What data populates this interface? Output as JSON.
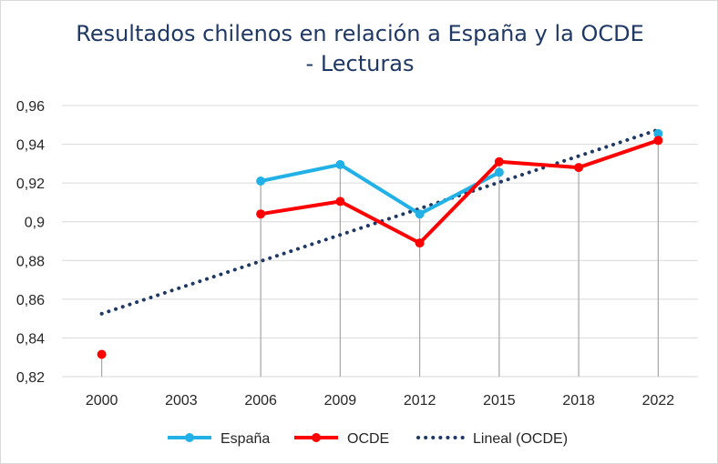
{
  "chart_data": {
    "type": "line",
    "title_lines": [
      "Resultados chilenos en relación a España y la OCDE",
      "- Lecturas"
    ],
    "categories": [
      "2000",
      "2003",
      "2006",
      "2009",
      "2012",
      "2015",
      "2018",
      "2022"
    ],
    "y_ticks": [
      "0,82",
      "0,84",
      "0,86",
      "0,88",
      "0,9",
      "0,92",
      "0,94",
      "0,96"
    ],
    "ylim": [
      0.82,
      0.96
    ],
    "grid": "horizontal",
    "legend_position": "bottom",
    "series": [
      {
        "name": "España",
        "color": "#21b1e7",
        "values": [
          null,
          null,
          0.921,
          0.9295,
          0.904,
          0.9255,
          null,
          0.9455
        ]
      },
      {
        "name": "OCDE",
        "color": "#ff0000",
        "values": [
          0.8315,
          null,
          0.904,
          0.9105,
          0.889,
          0.931,
          0.928,
          0.942
        ]
      },
      {
        "name": "Lineal (OCDE)",
        "color": "#1f3864",
        "style": "dotted",
        "trend_start": 0.8525,
        "trend_end": 0.9475
      }
    ]
  }
}
